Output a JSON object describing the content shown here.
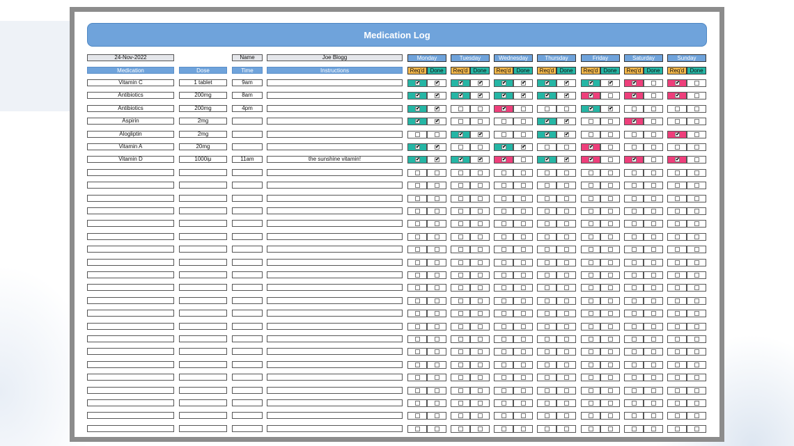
{
  "title": "Medication Log",
  "header": {
    "date": "24-Nov-2022",
    "name_label": "Name",
    "name_value": "Joe Blogg"
  },
  "columns": {
    "medication": "Medication",
    "dose": "Dose",
    "time": "Time",
    "instructions": "Instructions",
    "reqd": "Req'd",
    "done": "Done"
  },
  "days": [
    "Monday",
    "Tuesday",
    "Wednesday",
    "Thursday",
    "Friday",
    "Saturday",
    "Sunday"
  ],
  "check_glyph": "✔",
  "status_colors": {
    "complete": "#25b6a5",
    "missed": "#ee3f7b"
  },
  "meds": [
    {
      "medication": "Vitamin C",
      "dose": "1 tablet",
      "time": "9am",
      "instructions": "",
      "checks": [
        [
          1,
          1
        ],
        [
          1,
          1
        ],
        [
          1,
          1
        ],
        [
          1,
          1
        ],
        [
          1,
          1
        ],
        [
          1,
          0
        ],
        [
          1,
          0
        ]
      ]
    },
    {
      "medication": "Antibiotics",
      "dose": "200mg",
      "time": "8am",
      "instructions": "",
      "checks": [
        [
          1,
          1
        ],
        [
          1,
          1
        ],
        [
          1,
          1
        ],
        [
          1,
          1
        ],
        [
          1,
          0
        ],
        [
          1,
          0
        ],
        [
          1,
          0
        ]
      ]
    },
    {
      "medication": "Antibiotics",
      "dose": "200mg",
      "time": "4pm",
      "instructions": "",
      "checks": [
        [
          1,
          1
        ],
        [
          0,
          0
        ],
        [
          1,
          0
        ],
        [
          0,
          0
        ],
        [
          1,
          1
        ],
        [
          0,
          0
        ],
        [
          0,
          0
        ]
      ]
    },
    {
      "medication": "Aspirin",
      "dose": "2mg",
      "time": "",
      "instructions": "",
      "checks": [
        [
          1,
          1
        ],
        [
          0,
          0
        ],
        [
          0,
          0
        ],
        [
          1,
          1
        ],
        [
          0,
          0
        ],
        [
          1,
          0
        ],
        [
          0,
          0
        ]
      ]
    },
    {
      "medication": "Alogliptin",
      "dose": "2mg",
      "time": "",
      "instructions": "",
      "checks": [
        [
          0,
          0
        ],
        [
          1,
          1
        ],
        [
          0,
          0
        ],
        [
          1,
          1
        ],
        [
          0,
          0
        ],
        [
          0,
          0
        ],
        [
          1,
          0
        ]
      ]
    },
    {
      "medication": "Vitamin A",
      "dose": "20mg",
      "time": "",
      "instructions": "",
      "checks": [
        [
          1,
          1
        ],
        [
          0,
          0
        ],
        [
          1,
          1
        ],
        [
          0,
          0
        ],
        [
          1,
          0
        ],
        [
          0,
          0
        ],
        [
          0,
          0
        ]
      ]
    },
    {
      "medication": "Vitamin D",
      "dose": "1000iμ",
      "time": "11am",
      "instructions": "the sunshine vitamin!",
      "checks": [
        [
          1,
          1
        ],
        [
          1,
          1
        ],
        [
          1,
          0
        ],
        [
          1,
          1
        ],
        [
          1,
          0
        ],
        [
          1,
          0
        ],
        [
          1,
          0
        ]
      ]
    }
  ],
  "total_rows": 28
}
